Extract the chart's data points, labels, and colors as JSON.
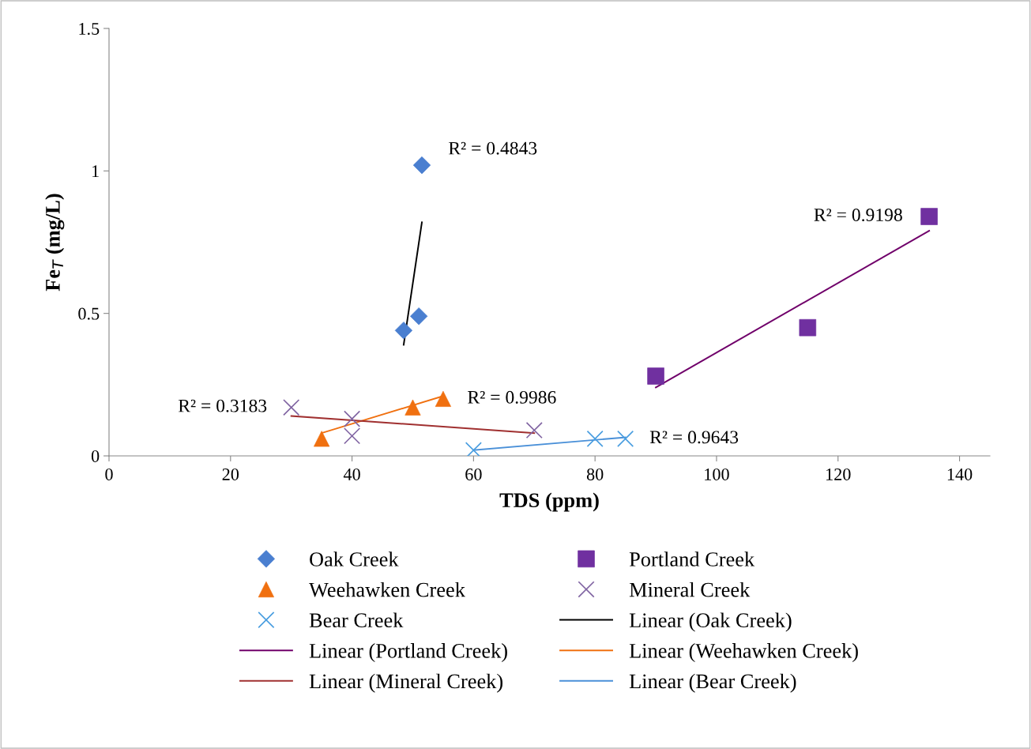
{
  "chart_data": {
    "type": "scatter",
    "xlabel": "TDS (ppm)",
    "ylabel": "Fe$_{T}$ (mg/L)",
    "xlim": [
      0,
      145
    ],
    "ylim": [
      0,
      1.5
    ],
    "xticks": [
      0,
      20,
      40,
      60,
      80,
      100,
      120,
      140
    ],
    "yticks": [
      0,
      0.5,
      1,
      1.5
    ],
    "grid": false,
    "legend": "bottom",
    "series": [
      {
        "name": "Oak Creek",
        "marker": "diamond",
        "color": "#4a7fd0",
        "x": [
          48.5,
          51,
          51.5
        ],
        "values": [
          0.44,
          0.49,
          1.02
        ]
      },
      {
        "name": "Portland Creek",
        "marker": "square",
        "color": "#7030a0",
        "x": [
          90,
          115,
          135
        ],
        "values": [
          0.28,
          0.45,
          0.84
        ]
      },
      {
        "name": "Weehawken Creek",
        "marker": "triangle",
        "color": "#f07010",
        "x": [
          35,
          50,
          55
        ],
        "values": [
          0.06,
          0.17,
          0.2
        ]
      },
      {
        "name": "Mineral Creek",
        "marker": "cross",
        "color": "#8064a2",
        "x": [
          30,
          40,
          40,
          70
        ],
        "values": [
          0.17,
          0.13,
          0.07,
          0.09
        ]
      },
      {
        "name": "Bear Creek",
        "marker": "cross",
        "color": "#4a9ee0",
        "x": [
          60,
          80,
          85
        ],
        "values": [
          0.02,
          0.06,
          0.06
        ]
      },
      {
        "name": "Linear (Oak Creek)",
        "type": "line",
        "color": "#000000",
        "x": [
          48.5,
          51.5
        ],
        "values": [
          0.39,
          0.82
        ]
      },
      {
        "name": "Linear (Portland Creek)",
        "type": "line",
        "color": "#70006a",
        "x": [
          90,
          135
        ],
        "values": [
          0.24,
          0.79
        ]
      },
      {
        "name": "Linear (Weehawken Creek)",
        "type": "line",
        "color": "#f07010",
        "x": [
          35,
          55
        ],
        "values": [
          0.08,
          0.21
        ]
      },
      {
        "name": "Linear (Mineral Creek)",
        "type": "line",
        "color": "#a03030",
        "x": [
          30,
          70
        ],
        "values": [
          0.14,
          0.08
        ]
      },
      {
        "name": "Linear (Bear Creek)",
        "type": "line",
        "color": "#4a90d8",
        "x": [
          60,
          85
        ],
        "values": [
          0.02,
          0.065
        ]
      }
    ],
    "annotations": [
      "R² = 0.4843",
      "R² = 0.9198",
      "R² = 0.9986",
      "R² = 0.3183",
      "R² = 0.9643"
    ]
  }
}
